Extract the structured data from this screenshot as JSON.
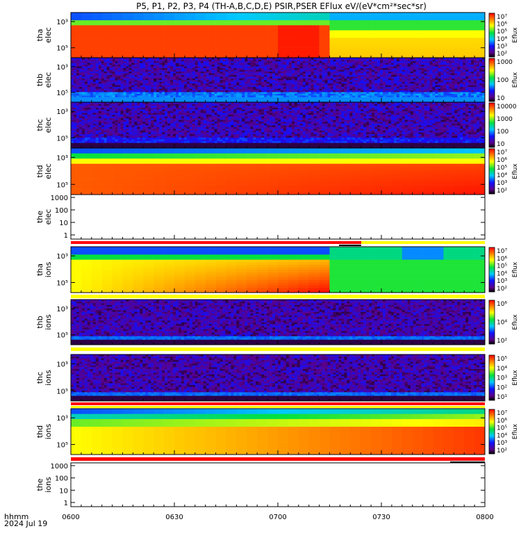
{
  "chart_data": {
    "type": "heatmap",
    "title": "P5, P1, P2, P3, P4 (TH-A,B,C,D,E) PSIR,PSER EFlux eV/(eV*cm²*sec*sr)",
    "x_axis": {
      "ticks": [
        "0600",
        "0630",
        "0700",
        "0730",
        "0800"
      ],
      "label_line1": "hhmm",
      "label_line2": "2024 Jul 19"
    },
    "panels": [
      {
        "label1": "tha",
        "label2": "elec",
        "ylabels": [
          "10⁵",
          "10³"
        ],
        "cbar": [
          "10⁷",
          "10⁶",
          "10⁵",
          "10⁴",
          "10³",
          "10²"
        ],
        "cbar_title": "Eflux"
      },
      {
        "label1": "thb",
        "label2": "elec",
        "ylabels": [
          "10⁵",
          "10³"
        ],
        "cbar": [
          "1000",
          "100",
          "10"
        ],
        "cbar_title": "Eflux"
      },
      {
        "label1": "thc",
        "label2": "elec",
        "ylabels": [
          "10⁵",
          "10³"
        ],
        "cbar": [
          "10000",
          "1000",
          "100",
          "10"
        ],
        "cbar_title": ""
      },
      {
        "label1": "thd",
        "label2": "elec",
        "ylabels": [
          "10⁵",
          "10³"
        ],
        "cbar": [
          "10⁷",
          "10⁶",
          "10⁵",
          "10⁴",
          "10³",
          "10²"
        ],
        "cbar_title": "Eflux"
      },
      {
        "label1": "the",
        "label2": "elec",
        "ylabels": [
          "1000",
          "100",
          "10",
          "1"
        ],
        "cbar": [],
        "cbar_title": ""
      },
      {
        "label1": "tha",
        "label2": "ions",
        "ylabels": [
          "10⁵",
          "10³"
        ],
        "cbar": [
          "10⁷",
          "10⁶",
          "10⁵",
          "10⁴",
          "10³",
          "10²"
        ],
        "cbar_title": "Eflux"
      },
      {
        "label1": "thb",
        "label2": "ions",
        "ylabels": [
          "10⁵",
          "10³"
        ],
        "cbar": [
          "10⁶",
          "10⁴",
          "10²"
        ],
        "cbar_title": "Eflux"
      },
      {
        "label1": "thc",
        "label2": "ions",
        "ylabels": [
          "10⁵",
          "10³"
        ],
        "cbar": [
          "10⁵",
          "10⁴",
          "10³",
          "10²",
          "10¹"
        ],
        "cbar_title": "Eflux"
      },
      {
        "label1": "thd",
        "label2": "ions",
        "ylabels": [
          "10⁵",
          "10³"
        ],
        "cbar": [
          "10⁷",
          "10⁶",
          "10⁵",
          "10⁴",
          "10³",
          "10²"
        ],
        "cbar_title": "Eflux"
      },
      {
        "label1": "the",
        "label2": "ions",
        "ylabels": [
          "1000",
          "100",
          "10",
          "1"
        ],
        "cbar": [],
        "cbar_title": ""
      }
    ],
    "colors": {
      "flag_red": "#ff0000",
      "flag_yellow": "#ffff00",
      "flag_black": "#000000"
    }
  }
}
